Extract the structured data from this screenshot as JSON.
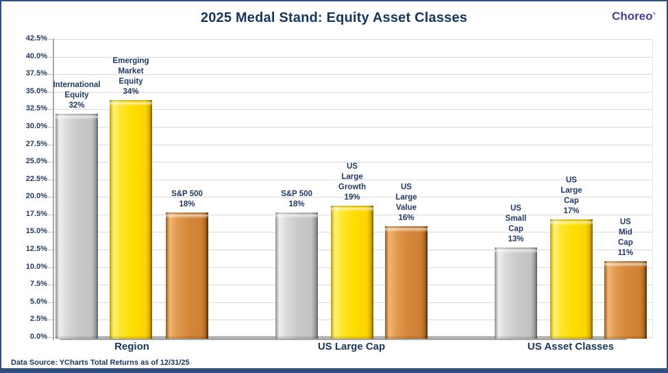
{
  "title": "2025 Medal Stand: Equity Asset Classes",
  "logo": {
    "text": "Choreo",
    "mark": "®"
  },
  "footer": {
    "text": "Data Source: YCharts Total Returns as of 12/31/25"
  },
  "colors": {
    "title_navy": "#17365D",
    "label_navy": "#1F3864",
    "logo_purple": "#4B3A91",
    "grid_gray": "#D9D9D9",
    "gold": "#FFDE00",
    "silver": "#C9C9C9",
    "bronze": "#D5873A",
    "border_blue": "#31507F"
  },
  "chart_data": {
    "type": "bar",
    "title": "2025 Medal Stand: Equity Asset Classes",
    "xlabel": "",
    "ylabel": "",
    "ylim": [
      0,
      42.5
    ],
    "ytick_step": 2.5,
    "ytick_labels": [
      "0.0%",
      "2.5%",
      "5.0%",
      "7.5%",
      "10.0%",
      "12.5%",
      "15.0%",
      "17.5%",
      "20.0%",
      "22.5%",
      "25.0%",
      "27.5%",
      "30.0%",
      "32.5%",
      "35.0%",
      "37.5%",
      "40.0%",
      "42.5%"
    ],
    "grid": true,
    "legend": false,
    "groups": [
      {
        "label": "Region",
        "bars": [
          {
            "name": "International Equity",
            "label_lines": [
              "International",
              "Equity"
            ],
            "value": 32,
            "value_label": "32%",
            "medal": "silver"
          },
          {
            "name": "Emerging Market Equity",
            "label_lines": [
              "Emerging",
              "Market",
              "Equity"
            ],
            "value": 34,
            "value_label": "34%",
            "medal": "gold"
          },
          {
            "name": "S&P 500",
            "label_lines": [
              "S&P 500"
            ],
            "value": 18,
            "value_label": "18%",
            "medal": "bronze"
          }
        ]
      },
      {
        "label": "US Large Cap",
        "bars": [
          {
            "name": "S&P 500",
            "label_lines": [
              "S&P 500"
            ],
            "value": 18,
            "value_label": "18%",
            "medal": "silver"
          },
          {
            "name": "US Large Growth",
            "label_lines": [
              "US",
              "Large",
              "Growth"
            ],
            "value": 19,
            "value_label": "19%",
            "medal": "gold"
          },
          {
            "name": "US Large Value",
            "label_lines": [
              "US",
              "Large",
              "Value"
            ],
            "value": 16,
            "value_label": "16%",
            "medal": "bronze"
          }
        ]
      },
      {
        "label": "US Asset Classes",
        "bars": [
          {
            "name": "US Small Cap",
            "label_lines": [
              "US",
              "Small",
              "Cap"
            ],
            "value": 13,
            "value_label": "13%",
            "medal": "silver"
          },
          {
            "name": "US Large Cap",
            "label_lines": [
              "US",
              "Large",
              "Cap"
            ],
            "value": 17,
            "value_label": "17%",
            "medal": "gold"
          },
          {
            "name": "US Mid Cap",
            "label_lines": [
              "US",
              "Mid",
              "Cap"
            ],
            "value": 11,
            "value_label": "11%",
            "medal": "bronze"
          }
        ]
      }
    ]
  }
}
